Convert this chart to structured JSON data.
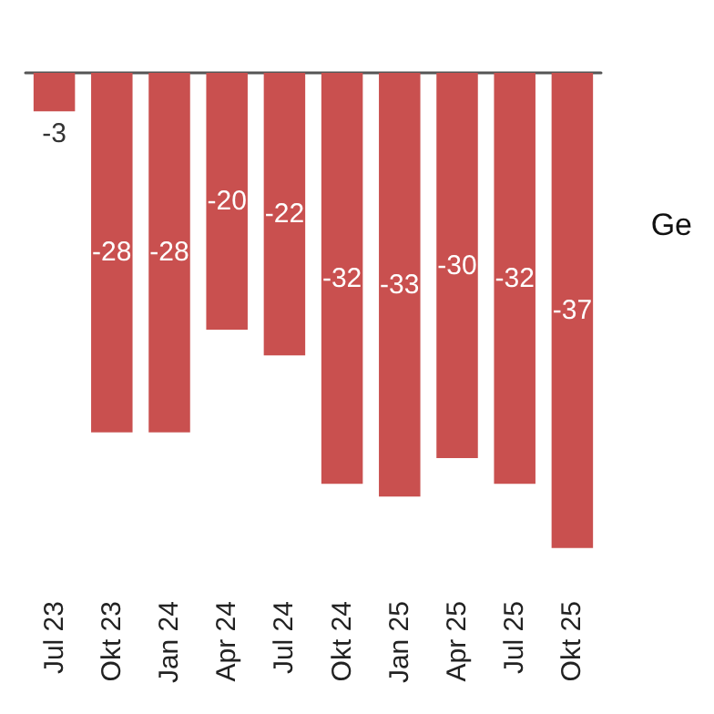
{
  "chart_data": {
    "type": "bar",
    "categories": [
      "Jul 23",
      "Okt 23",
      "Jan 24",
      "Apr 24",
      "Jul 24",
      "Okt 24",
      "Jan 25",
      "Apr 25",
      "Jul 25",
      "Okt 25"
    ],
    "values": [
      -3,
      -28,
      -28,
      -20,
      -22,
      -32,
      -33,
      -30,
      -32,
      -37
    ],
    "color": "#c9504f",
    "data_labels": true,
    "annotations": [
      "Ge"
    ]
  }
}
